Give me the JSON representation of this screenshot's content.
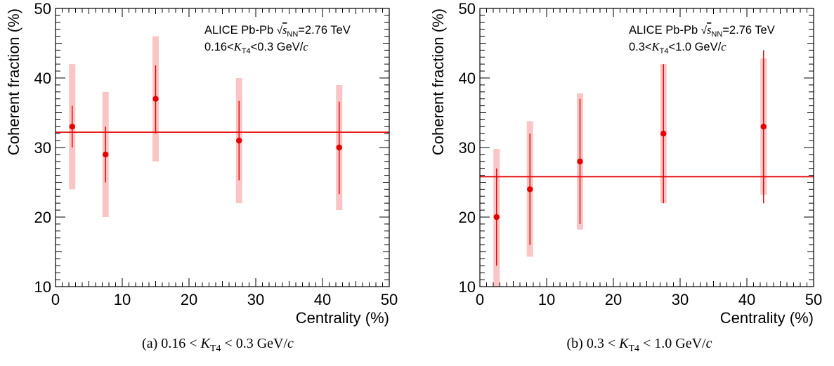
{
  "panels": [
    {
      "caption_label": "(a)",
      "caption_lo": "0.16",
      "caption_var": "K",
      "caption_sub": "T4",
      "caption_hi": "0.3",
      "caption_unit": "GeV/",
      "caption_unit_c": "c",
      "legend": {
        "experiment": "ALICE Pb-Pb ",
        "sqrt_s": "s",
        "sqrt_sub": "NN",
        "energy": "=2.76 TeV",
        "range_lo": "0.16<",
        "range_var": "K",
        "range_sub": "T4",
        "range_hi": "<0.3 GeV/",
        "range_unit_c": "c"
      },
      "chart_data": {
        "type": "scatter",
        "xlabel": "Centrality (%)",
        "ylabel": "Coherent fraction (%)",
        "xlim": [
          0,
          50
        ],
        "ylim": [
          10,
          50
        ],
        "xticks": [
          0,
          10,
          20,
          30,
          40,
          50
        ],
        "yticks": [
          10,
          20,
          30,
          40,
          50
        ],
        "x": [
          2.5,
          7.5,
          15,
          27.5,
          42.5
        ],
        "y": [
          33,
          29,
          37,
          31,
          30
        ],
        "stat_err_low": [
          3,
          4,
          5,
          5.7,
          6.7
        ],
        "stat_err_high": [
          3,
          4,
          4.8,
          5.7,
          6.6
        ],
        "sys_err_low": [
          9,
          9,
          9,
          9,
          9
        ],
        "sys_err_high": [
          9,
          9,
          9,
          9,
          9
        ],
        "fit_constant": 32.2,
        "grid": false
      }
    },
    {
      "caption_label": "(b)",
      "caption_lo": "0.3",
      "caption_var": "K",
      "caption_sub": "T4",
      "caption_hi": "1.0",
      "caption_unit": "GeV/",
      "caption_unit_c": "c",
      "legend": {
        "experiment": "ALICE Pb-Pb ",
        "sqrt_s": "s",
        "sqrt_sub": "NN",
        "energy": "=2.76 TeV",
        "range_lo": "0.3<",
        "range_var": "K",
        "range_sub": "T4",
        "range_hi": "<1.0 GeV/",
        "range_unit_c": "c"
      },
      "chart_data": {
        "type": "scatter",
        "xlabel": "Centrality (%)",
        "ylabel": "Coherent fraction (%)",
        "xlim": [
          0,
          50
        ],
        "ylim": [
          10,
          50
        ],
        "xticks": [
          0,
          10,
          20,
          30,
          40,
          50
        ],
        "yticks": [
          10,
          20,
          30,
          40,
          50
        ],
        "x": [
          2.5,
          7.5,
          15,
          27.5,
          42.5
        ],
        "y": [
          20,
          24,
          28,
          32,
          33
        ],
        "stat_err_low": [
          7,
          8,
          9,
          10,
          11
        ],
        "stat_err_high": [
          7,
          8,
          9,
          10,
          11
        ],
        "sys_err_low": [
          10,
          9.7,
          9.8,
          10,
          9.8
        ],
        "sys_err_high": [
          9.8,
          9.8,
          9.8,
          10,
          9.8
        ],
        "fit_constant": 25.8,
        "grid": false
      }
    }
  ],
  "colors": {
    "marker": "#e60000",
    "systematic_band": "#f9c5c5",
    "fit_line": "#e60000",
    "axis": "#000000"
  }
}
